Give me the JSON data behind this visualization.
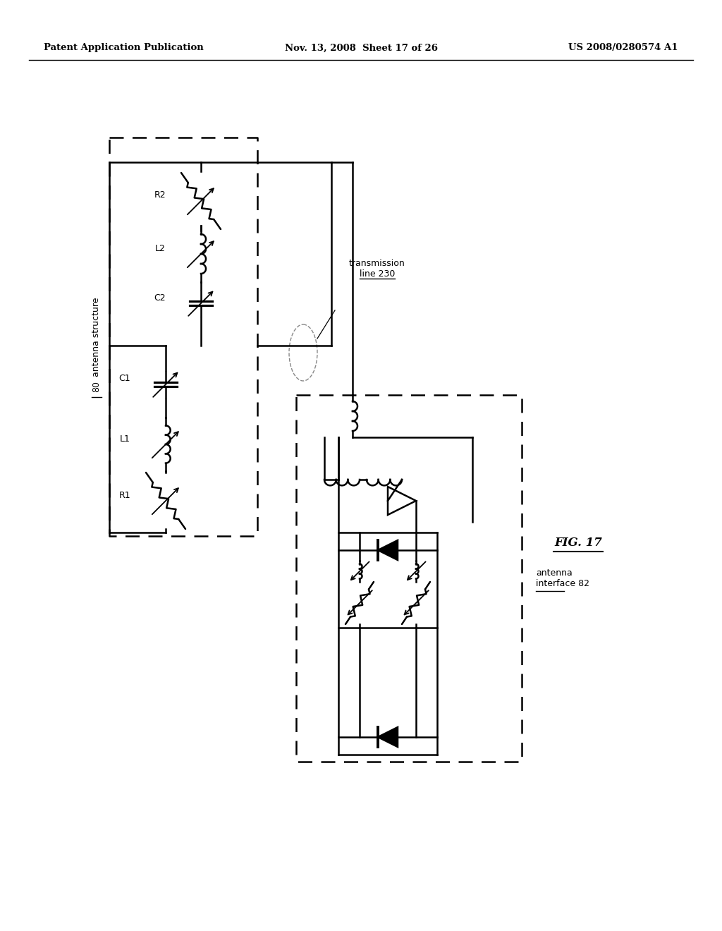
{
  "bg_color": "#ffffff",
  "header_left": "Patent Application Publication",
  "header_mid": "Nov. 13, 2008  Sheet 17 of 26",
  "header_right": "US 2008/0280574 A1",
  "fig_label": "FIG. 17"
}
